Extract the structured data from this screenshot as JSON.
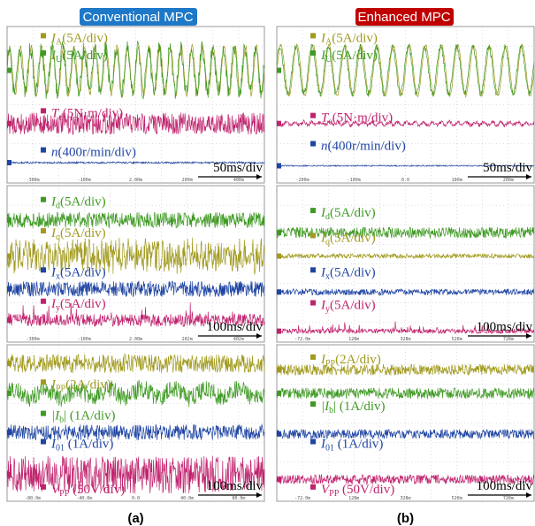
{
  "header": {
    "left": "Conventional MPC",
    "right": "Enhanced MPC"
  },
  "columns": [
    {
      "caption": "(a)",
      "panels": [
        {
          "scale": "50ms/div",
          "axis": [
            "-300m",
            "-100m",
            "2.00m",
            "200m",
            "400m"
          ],
          "signals": [
            {
              "pre": "I",
              "sub": "A",
              "post": "(5A/div)",
              "color": "#a19a1e"
            },
            {
              "pre": "I",
              "sub": "U",
              "post": "(5A/div)",
              "color": "#3f9a24"
            },
            {
              "pre": "T",
              "sub": "e",
              "post": "(5N·m/div)",
              "color": "#c0236e"
            },
            {
              "pre": "n",
              "sub": "",
              "post": "(400r/min/div)",
              "color": "#1f45a3"
            }
          ]
        },
        {
          "scale": "100ms/div",
          "axis": [
            "-300m",
            "-100m",
            "2.00m",
            "202m",
            "402m"
          ],
          "signals": [
            {
              "pre": "I",
              "sub": "d",
              "post": "(5A/div)",
              "color": "#3f9a24"
            },
            {
              "pre": "I",
              "sub": "q",
              "post": "(5A/div)",
              "color": "#a19a1e"
            },
            {
              "pre": "I",
              "sub": "x",
              "post": "(5A/div)",
              "color": "#1f45a3"
            },
            {
              "pre": "I",
              "sub": "y",
              "post": "(5A/div)",
              "color": "#c0236e"
            }
          ]
        },
        {
          "scale": "100ms/div",
          "axis": [
            "-80.0m",
            "-40.0m",
            "0.0",
            "40.0m",
            "80.0m"
          ],
          "signals": [
            {
              "pre": "I",
              "sub": "PP",
              "post": "(2A/div)",
              "color": "#a19a1e"
            },
            {
              "pre": "|I",
              "sub": "b",
              "post": "| (1A/div)",
              "color": "#3f9a24"
            },
            {
              "pre": "I",
              "sub": "01",
              "post": " (1A/div)",
              "color": "#1f45a3"
            },
            {
              "pre": "V",
              "sub": "PP",
              "post": " (50V/div)",
              "color": "#c0236e"
            }
          ]
        }
      ]
    },
    {
      "caption": "(b)",
      "panels": [
        {
          "scale": "50ms/div",
          "axis": [
            "-200m",
            "-100m",
            "0.0",
            "100m",
            "200m"
          ],
          "signals": [
            {
              "pre": "I",
              "sub": "A",
              "post": "(5A/div)",
              "color": "#a19a1e"
            },
            {
              "pre": "I",
              "sub": "U",
              "post": "(5A/div)",
              "color": "#3f9a24"
            },
            {
              "pre": "T",
              "sub": "e",
              "post": "(5N·m/div)",
              "color": "#c0236e"
            },
            {
              "pre": "n",
              "sub": "",
              "post": "(400r/min/div)",
              "color": "#1f45a3"
            }
          ]
        },
        {
          "scale": "100ms/div",
          "axis": [
            "-72.0m",
            "128m",
            "328m",
            "528m",
            "728m"
          ],
          "signals": [
            {
              "pre": "I",
              "sub": "d",
              "post": "(5A/div)",
              "color": "#3f9a24"
            },
            {
              "pre": "I",
              "sub": "q",
              "post": "(5A/div)",
              "color": "#a19a1e"
            },
            {
              "pre": "I",
              "sub": "x",
              "post": "(5A/div)",
              "color": "#1f45a3"
            },
            {
              "pre": "I",
              "sub": "y",
              "post": "(5A/div)",
              "color": "#c0236e"
            }
          ]
        },
        {
          "scale": "100ms/div",
          "axis": [
            "-72.0m",
            "128m",
            "328m",
            "528m",
            "728m"
          ],
          "signals": [
            {
              "pre": "I",
              "sub": "PP",
              "post": "(2A/div)",
              "color": "#a19a1e"
            },
            {
              "pre": "|I",
              "sub": "b",
              "post": "| (1A/div)",
              "color": "#3f9a24"
            },
            {
              "pre": "I",
              "sub": "01",
              "post": " (1A/div)",
              "color": "#1f45a3"
            },
            {
              "pre": "V",
              "sub": "PP",
              "post": " (50V/div)",
              "color": "#c0236e"
            }
          ]
        }
      ]
    }
  ]
}
